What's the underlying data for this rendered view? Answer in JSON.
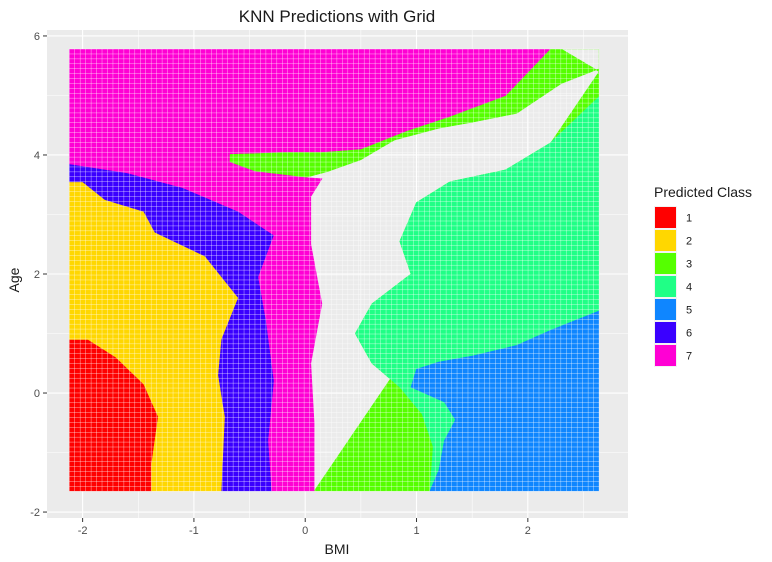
{
  "chart_data": {
    "type": "heatmap",
    "title": "KNN Predictions with Grid",
    "xlabel": "BMI",
    "ylabel": "Age",
    "xlim": [
      -2.32,
      2.9
    ],
    "ylim": [
      -2.1,
      6.1
    ],
    "x_ticks": [
      -2,
      -1,
      0,
      1,
      2
    ],
    "y_ticks": [
      -2,
      0,
      2,
      4,
      6
    ],
    "grid_x_range": [
      -2.12,
      2.64
    ],
    "grid_y_range": [
      -1.65,
      5.78
    ],
    "grid": true,
    "legend": {
      "title": "Predicted Class",
      "position": "right",
      "entries": [
        {
          "label": "1",
          "color": "#ff0000"
        },
        {
          "label": "2",
          "color": "#ffd700"
        },
        {
          "label": "3",
          "color": "#55ff00"
        },
        {
          "label": "4",
          "color": "#20ff86"
        },
        {
          "label": "5",
          "color": "#0f86ff"
        },
        {
          "label": "6",
          "color": "#3a00ff"
        },
        {
          "label": "7",
          "color": "#ff00d4"
        }
      ]
    },
    "regions": [
      {
        "class": "1",
        "polygon": [
          [
            -2.12,
            -1.65
          ],
          [
            -1.38,
            -1.65
          ],
          [
            -1.38,
            -1.2
          ],
          [
            -1.32,
            -0.4
          ],
          [
            -1.45,
            0.15
          ],
          [
            -1.7,
            0.6
          ],
          [
            -1.95,
            0.9
          ],
          [
            -2.12,
            0.9
          ]
        ]
      },
      {
        "class": "2",
        "polygon": [
          [
            -2.12,
            0.9
          ],
          [
            -1.95,
            0.9
          ],
          [
            -1.7,
            0.6
          ],
          [
            -1.45,
            0.15
          ],
          [
            -1.32,
            -0.4
          ],
          [
            -1.38,
            -1.2
          ],
          [
            -1.38,
            -1.65
          ],
          [
            -0.75,
            -1.65
          ],
          [
            -0.72,
            -0.4
          ],
          [
            -0.78,
            0.3
          ],
          [
            -0.75,
            0.9
          ],
          [
            -0.6,
            1.6
          ],
          [
            -0.9,
            2.3
          ],
          [
            -1.35,
            2.7
          ],
          [
            -1.45,
            3.05
          ],
          [
            -1.8,
            3.25
          ],
          [
            -2.0,
            3.55
          ],
          [
            -2.12,
            3.55
          ]
        ]
      },
      {
        "class": "6",
        "polygon": [
          [
            -2.12,
            3.55
          ],
          [
            -2.0,
            3.55
          ],
          [
            -1.8,
            3.25
          ],
          [
            -1.45,
            3.05
          ],
          [
            -1.35,
            2.7
          ],
          [
            -0.9,
            2.3
          ],
          [
            -0.6,
            1.6
          ],
          [
            -0.75,
            0.9
          ],
          [
            -0.78,
            0.3
          ],
          [
            -0.72,
            -0.4
          ],
          [
            -0.75,
            -1.65
          ],
          [
            -0.3,
            -1.65
          ],
          [
            -0.33,
            -0.8
          ],
          [
            -0.28,
            0.2
          ],
          [
            -0.35,
            1.2
          ],
          [
            -0.42,
            1.95
          ],
          [
            -0.28,
            2.65
          ],
          [
            -0.6,
            3.05
          ],
          [
            -1.1,
            3.45
          ],
          [
            -1.6,
            3.7
          ],
          [
            -2.12,
            3.85
          ]
        ]
      },
      {
        "class": "3",
        "polygon": [
          [
            0.08,
            -1.65
          ],
          [
            1.12,
            -1.65
          ],
          [
            1.15,
            -0.9
          ],
          [
            1.05,
            -0.35
          ],
          [
            0.85,
            0.1
          ],
          [
            0.6,
            0.5
          ],
          [
            0.45,
            1.0
          ],
          [
            0.6,
            1.5
          ],
          [
            0.95,
            2.0
          ],
          [
            0.85,
            2.55
          ],
          [
            1.0,
            3.2
          ],
          [
            1.3,
            3.55
          ],
          [
            1.8,
            3.75
          ],
          [
            2.2,
            4.2
          ],
          [
            2.64,
            4.98
          ],
          [
            2.64,
            5.45
          ],
          [
            2.3,
            5.2
          ],
          [
            1.9,
            4.7
          ],
          [
            1.5,
            4.55
          ],
          [
            1.2,
            4.45
          ],
          [
            0.8,
            4.25
          ],
          [
            0.5,
            3.92
          ],
          [
            0.2,
            3.72
          ],
          [
            0.0,
            3.62
          ],
          [
            -0.45,
            3.72
          ],
          [
            -0.68,
            3.88
          ],
          [
            -0.68,
            4.02
          ],
          [
            -0.15,
            4.05
          ],
          [
            0.15,
            4.05
          ],
          [
            0.5,
            4.1
          ],
          [
            0.9,
            4.4
          ],
          [
            1.3,
            4.65
          ],
          [
            1.8,
            5.0
          ],
          [
            2.2,
            5.78
          ],
          [
            2.64,
            5.78
          ],
          [
            2.64,
            5.4
          ],
          [
            2.75,
            5.78
          ],
          [
            2.64,
            5.78
          ],
          [
            2.64,
            6.1
          ],
          [
            2.64,
            5.78
          ],
          [
            2.3,
            5.78
          ],
          [
            2.6,
            5.45
          ],
          [
            2.64,
            5.4
          ]
        ]
      },
      {
        "class": "4",
        "polygon": [
          [
            1.12,
            -1.65
          ],
          [
            1.15,
            -0.9
          ],
          [
            1.05,
            -0.35
          ],
          [
            0.85,
            0.1
          ],
          [
            0.6,
            0.5
          ],
          [
            0.45,
            1.0
          ],
          [
            0.6,
            1.5
          ],
          [
            0.95,
            2.0
          ],
          [
            0.85,
            2.55
          ],
          [
            1.0,
            3.2
          ],
          [
            1.3,
            3.55
          ],
          [
            1.8,
            3.75
          ],
          [
            2.2,
            4.2
          ],
          [
            2.64,
            4.98
          ],
          [
            2.64,
            1.38
          ],
          [
            2.2,
            1.05
          ],
          [
            1.9,
            0.8
          ],
          [
            1.5,
            0.62
          ],
          [
            1.2,
            0.52
          ],
          [
            1.0,
            0.4
          ],
          [
            0.95,
            0.1
          ],
          [
            1.25,
            -0.15
          ],
          [
            1.35,
            -0.45
          ],
          [
            1.25,
            -0.8
          ],
          [
            1.2,
            -1.3
          ],
          [
            1.12,
            -1.65
          ]
        ]
      },
      {
        "class": "5",
        "polygon": [
          [
            1.12,
            -1.65
          ],
          [
            2.64,
            -1.65
          ],
          [
            2.64,
            1.38
          ],
          [
            2.2,
            1.05
          ],
          [
            1.9,
            0.8
          ],
          [
            1.5,
            0.62
          ],
          [
            1.2,
            0.52
          ],
          [
            1.0,
            0.4
          ],
          [
            0.95,
            0.1
          ],
          [
            1.25,
            -0.15
          ],
          [
            1.35,
            -0.45
          ],
          [
            1.25,
            -0.8
          ],
          [
            1.2,
            -1.3
          ]
        ]
      },
      {
        "class": "7",
        "polygon": [
          [
            -0.3,
            -1.65
          ],
          [
            0.08,
            -1.65
          ],
          [
            0.08,
            -0.5
          ],
          [
            0.05,
            0.5
          ],
          [
            0.15,
            1.5
          ],
          [
            0.05,
            2.5
          ],
          [
            0.05,
            3.3
          ],
          [
            0.15,
            3.6
          ],
          [
            0.0,
            3.62
          ],
          [
            -0.45,
            3.72
          ],
          [
            -0.68,
            3.88
          ],
          [
            -0.68,
            4.02
          ],
          [
            -0.15,
            4.05
          ],
          [
            0.15,
            4.05
          ],
          [
            0.5,
            4.1
          ],
          [
            0.9,
            4.4
          ],
          [
            1.3,
            4.65
          ],
          [
            1.8,
            5.0
          ],
          [
            2.2,
            5.78
          ],
          [
            -2.12,
            5.78
          ],
          [
            -2.12,
            3.85
          ],
          [
            -1.6,
            3.7
          ],
          [
            -1.1,
            3.45
          ],
          [
            -0.6,
            3.05
          ],
          [
            -0.28,
            2.65
          ],
          [
            -0.42,
            1.95
          ],
          [
            -0.35,
            1.2
          ],
          [
            -0.28,
            0.2
          ],
          [
            -0.33,
            -0.8
          ]
        ]
      }
    ]
  }
}
